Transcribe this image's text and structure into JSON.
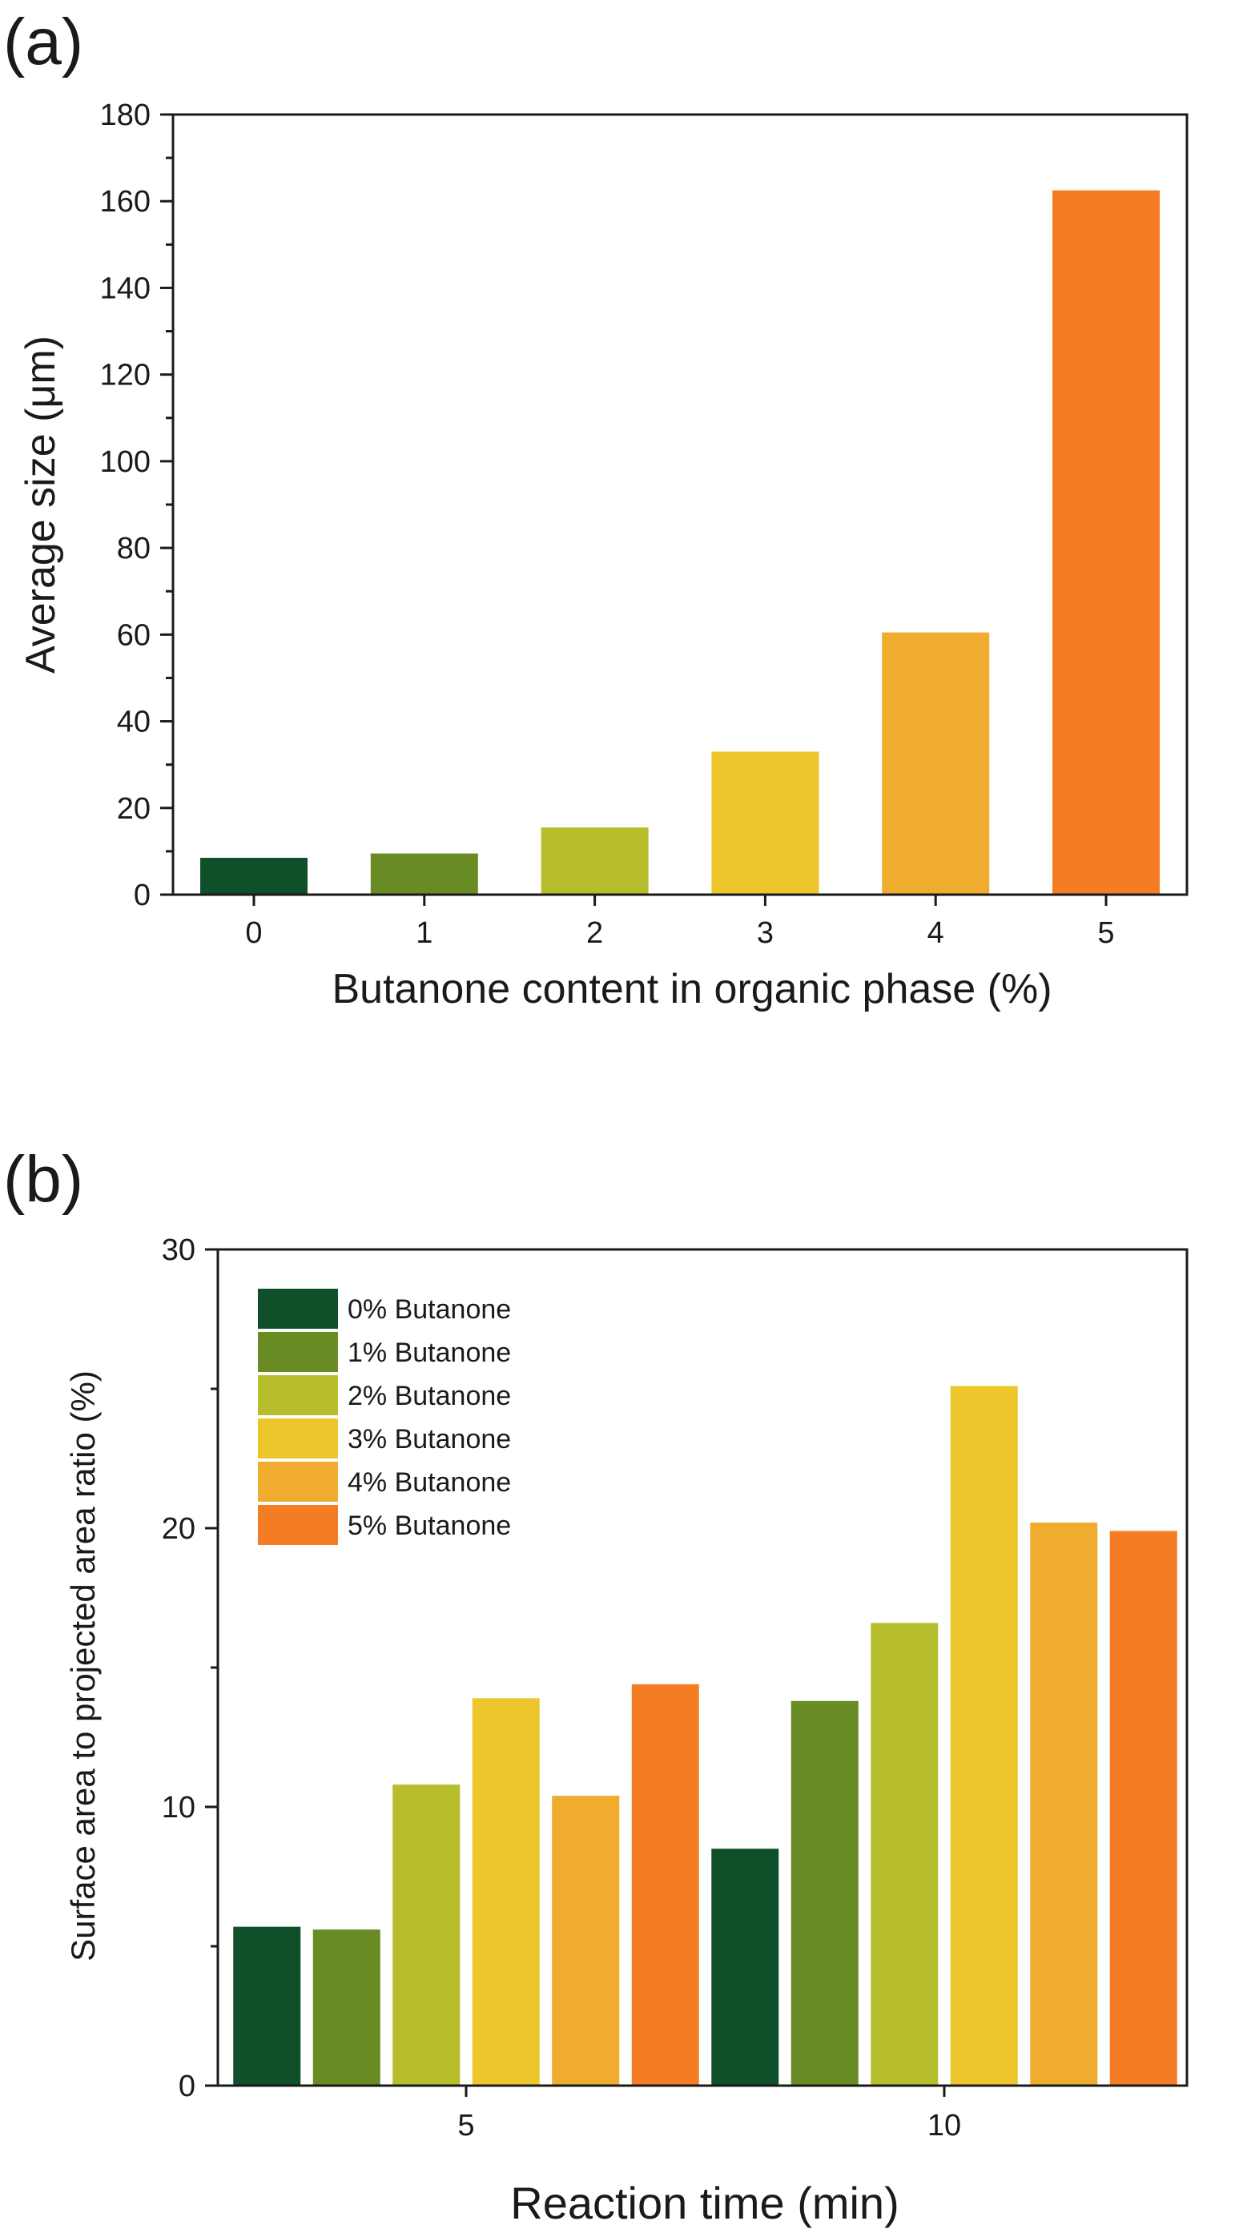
{
  "colors": {
    "b0": "#0f4f2a",
    "b1": "#688b23",
    "b2": "#b7be2c",
    "b3": "#ecc62b",
    "b4": "#efac2e",
    "b5": "#f47d23"
  },
  "chart_data": [
    {
      "panel": "(a)",
      "type": "bar",
      "title": "",
      "xlabel": "Butanone content in organic phase (%)",
      "ylabel": "Average size (μm)",
      "categories": [
        "0",
        "1",
        "2",
        "3",
        "4",
        "5"
      ],
      "values": [
        8.5,
        9.5,
        15.5,
        33,
        60.5,
        162.5
      ],
      "ylim": [
        0,
        180
      ],
      "yticks": [
        0,
        20,
        40,
        60,
        80,
        100,
        120,
        140,
        160,
        180
      ],
      "grid": false
    },
    {
      "panel": "(b)",
      "type": "bar",
      "title": "",
      "xlabel": "Reaction time (min)",
      "ylabel": "Surface area to projected area ratio (%)",
      "categories": [
        "5",
        "10"
      ],
      "series": [
        {
          "name": "0% Butanone",
          "values": [
            5.7,
            8.5
          ]
        },
        {
          "name": "1% Butanone",
          "values": [
            5.6,
            13.8
          ]
        },
        {
          "name": "2% Butanone",
          "values": [
            10.8,
            16.6
          ]
        },
        {
          "name": "3% Butanone",
          "values": [
            13.9,
            25.1
          ]
        },
        {
          "name": "4% Butanone",
          "values": [
            10.4,
            20.2
          ]
        },
        {
          "name": "5% Butanone",
          "values": [
            14.4,
            19.9
          ]
        }
      ],
      "ylim": [
        0,
        30
      ],
      "yticks": [
        0,
        10,
        20,
        30
      ],
      "legend": "top-left",
      "grid": false
    }
  ]
}
